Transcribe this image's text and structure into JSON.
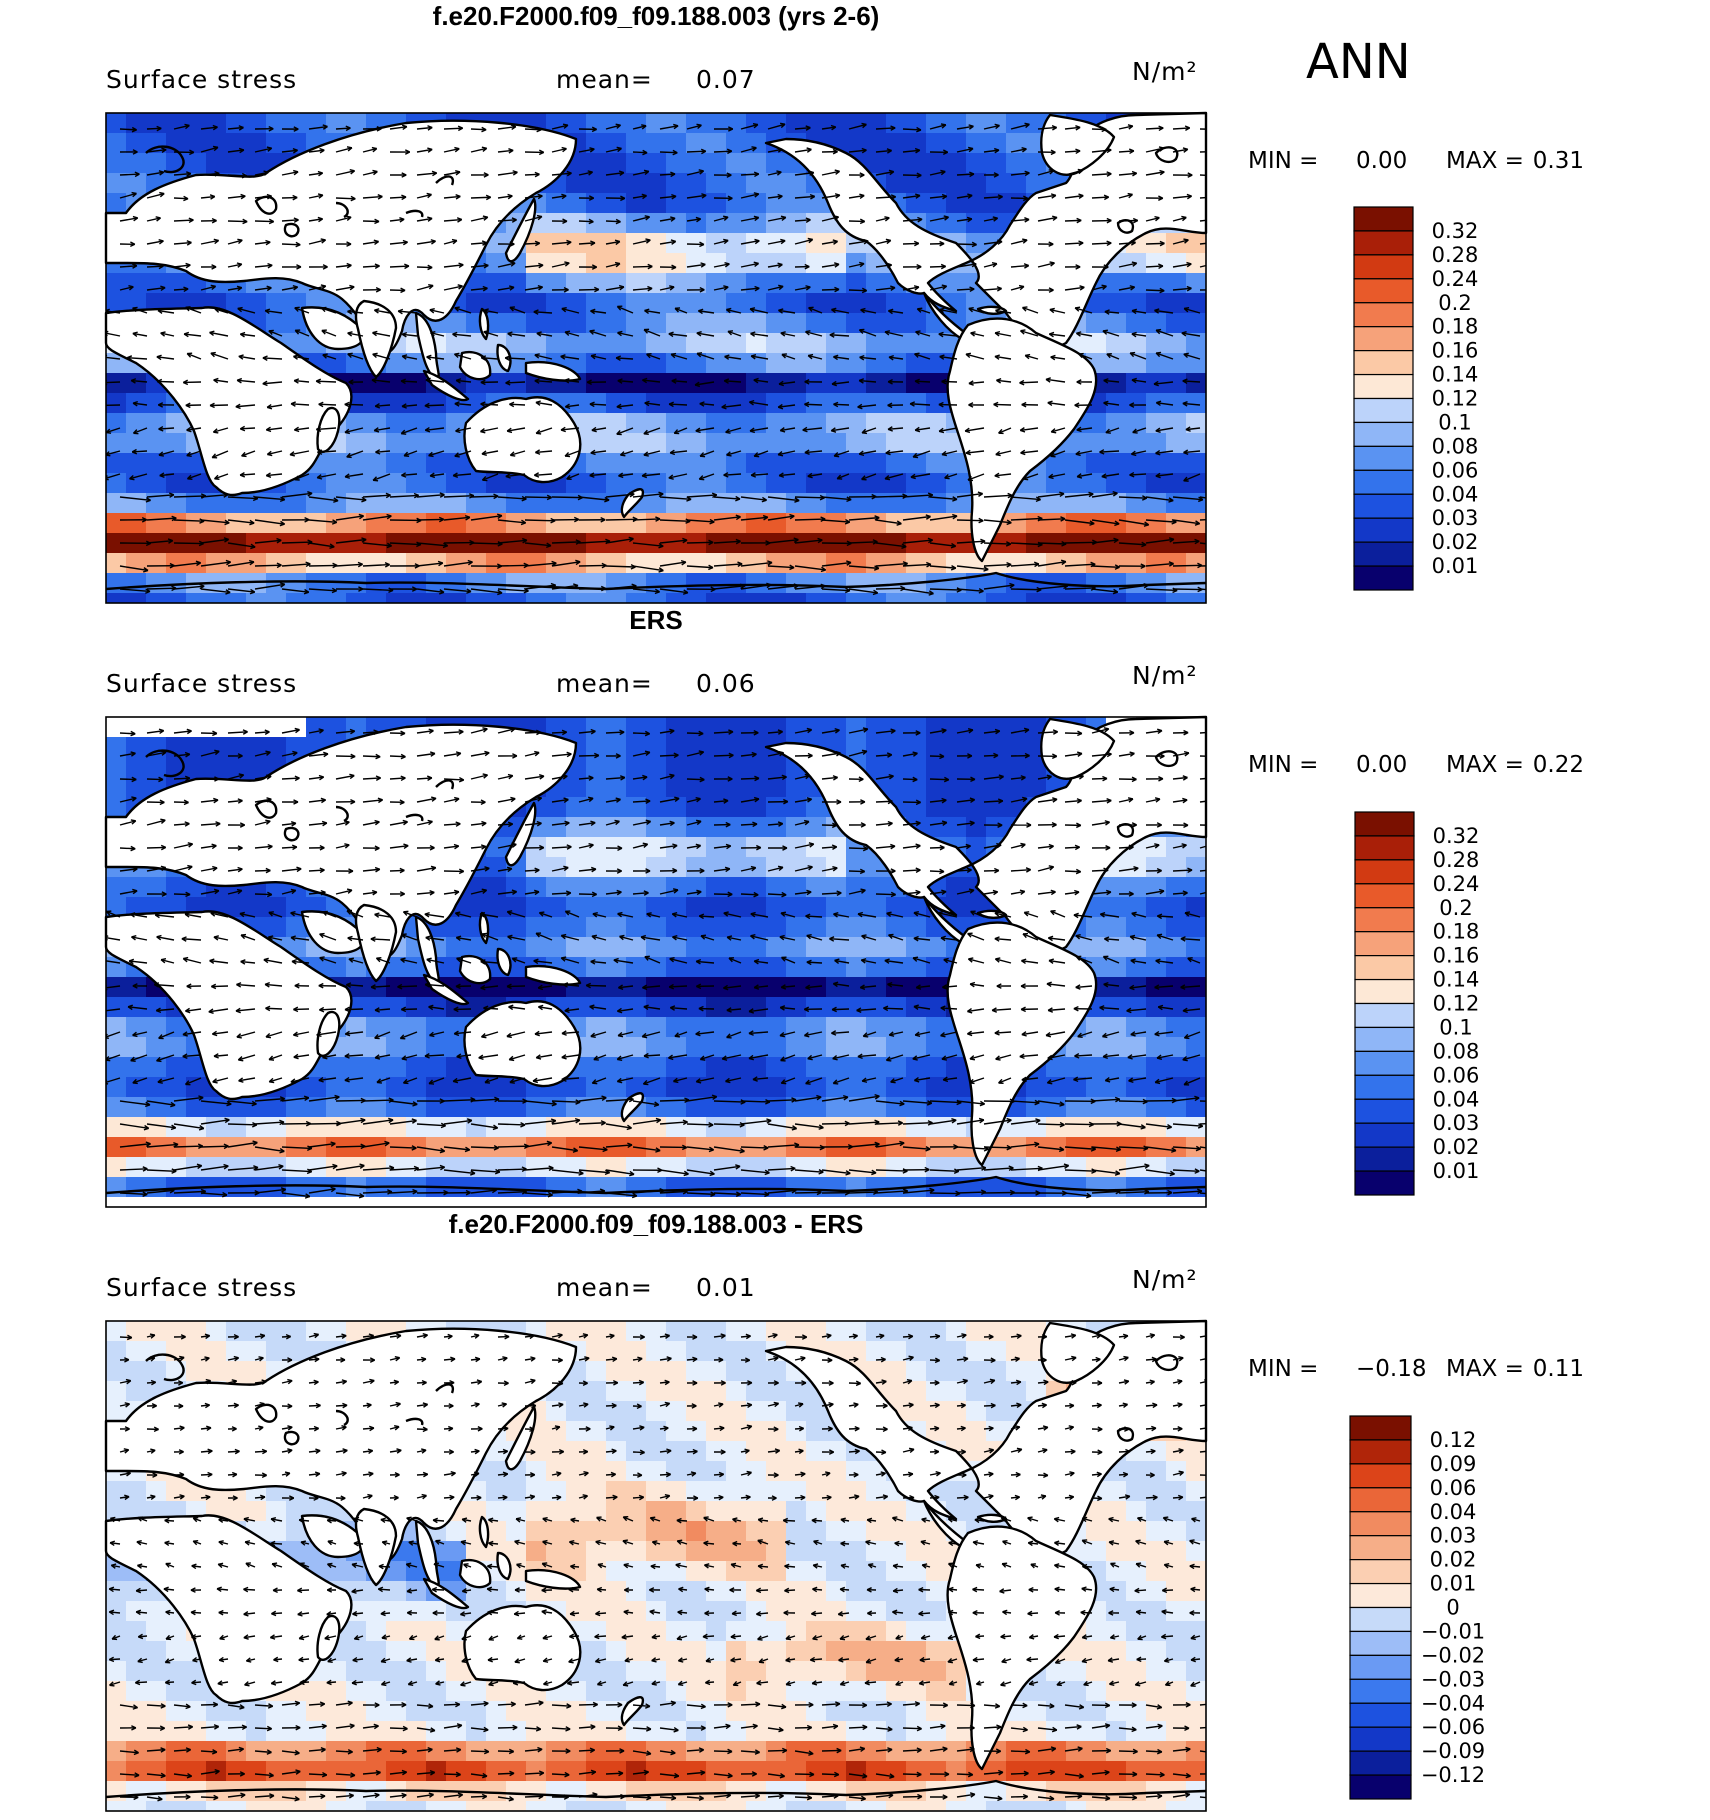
{
  "season": "ANN",
  "colors": {
    "abs": [
      "#08006d",
      "#0b1f9c",
      "#1338c8",
      "#1d52e0",
      "#3373ec",
      "#5a93f2",
      "#8fb6f7",
      "#bcd3fa",
      "#e3eefd",
      "#fde8d6",
      "#fbc9a6",
      "#f6a27a",
      "#f17b4e",
      "#e85a2a",
      "#d23a12",
      "#a91f08",
      "#7a1000"
    ],
    "diff": [
      "#08006d",
      "#0b1f9c",
      "#1338c8",
      "#1d52e0",
      "#3b79ee",
      "#6a9af3",
      "#9dbdf7",
      "#c6daf9",
      "#e6f0fd",
      "#fde9da",
      "#fbcfb2",
      "#f6ae88",
      "#f18b60",
      "#ea6638",
      "#dc4419",
      "#b02509",
      "#7a1000"
    ]
  },
  "panels": [
    {
      "id": "model",
      "title": "f.e20.F2000.f09_f09.188.003 (yrs 2-6)",
      "variable": "Surface stress",
      "mean_label": "mean=",
      "mean": "0.07",
      "units": "N/m²",
      "min_label": "MIN =",
      "min": "0.00",
      "max_label": "MAX =",
      "max": "0.31",
      "levels": [
        "0.32",
        "0.28",
        "0.24",
        "0.2",
        "0.18",
        "0.16",
        "0.14",
        "0.12",
        "0.1",
        "0.08",
        "0.06",
        "0.04",
        "0.03",
        "0.02",
        "0.01"
      ]
    },
    {
      "id": "obs",
      "title": "ERS",
      "variable": "Surface stress",
      "mean_label": "mean=",
      "mean": "0.06",
      "units": "N/m²",
      "min_label": "MIN =",
      "min": "0.00",
      "max_label": "MAX =",
      "max": "0.22",
      "levels": [
        "0.32",
        "0.28",
        "0.24",
        "0.2",
        "0.18",
        "0.16",
        "0.14",
        "0.12",
        "0.1",
        "0.08",
        "0.06",
        "0.04",
        "0.03",
        "0.02",
        "0.01"
      ]
    },
    {
      "id": "diff",
      "title": "f.e20.F2000.f09_f09.188.003 - ERS",
      "variable": "Surface stress",
      "mean_label": "mean=",
      "mean": "0.01",
      "units": "N/m²",
      "min_label": "MIN =",
      "min": "−0.18",
      "max_label": "MAX =",
      "max": "0.11",
      "levels": [
        "0.12",
        "0.09",
        "0.06",
        "0.04",
        "0.03",
        "0.02",
        "0.01",
        "0",
        "−0.01",
        "−0.02",
        "−0.03",
        "−0.04",
        "−0.06",
        "−0.09",
        "−0.12"
      ]
    }
  ]
}
